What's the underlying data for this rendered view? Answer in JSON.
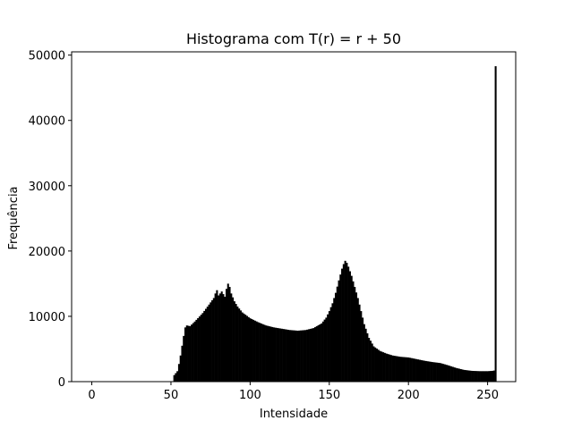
{
  "chart_data": {
    "type": "bar",
    "title": "Histograma com T(r) = r + 50",
    "xlabel": "Intensidade",
    "ylabel": "Frequência",
    "xlim": [
      -12.75,
      267.75
    ],
    "ylim": [
      0,
      50500
    ],
    "xticks": [
      0,
      50,
      100,
      150,
      200,
      250
    ],
    "yticks": [
      0,
      10000,
      20000,
      30000,
      40000,
      50000
    ],
    "grid": false,
    "legend": "none",
    "bar_color": "#000000",
    "bin_width": 1,
    "anchors": [
      [
        50,
        0
      ],
      [
        51,
        0
      ],
      [
        52,
        1000
      ],
      [
        53,
        1300
      ],
      [
        54,
        1600
      ],
      [
        55,
        2700
      ],
      [
        56,
        4000
      ],
      [
        57,
        5500
      ],
      [
        58,
        7000
      ],
      [
        59,
        8300
      ],
      [
        60,
        8600
      ],
      [
        62,
        8500
      ],
      [
        65,
        9200
      ],
      [
        70,
        10500
      ],
      [
        74,
        11800
      ],
      [
        77,
        12800
      ],
      [
        78,
        13500
      ],
      [
        79,
        14000
      ],
      [
        80,
        13200
      ],
      [
        82,
        13800
      ],
      [
        84,
        13000
      ],
      [
        85,
        14200
      ],
      [
        86,
        15000
      ],
      [
        87,
        14500
      ],
      [
        88,
        13500
      ],
      [
        90,
        12300
      ],
      [
        92,
        11500
      ],
      [
        95,
        10600
      ],
      [
        100,
        9700
      ],
      [
        105,
        9100
      ],
      [
        110,
        8600
      ],
      [
        115,
        8300
      ],
      [
        120,
        8100
      ],
      [
        125,
        7900
      ],
      [
        130,
        7800
      ],
      [
        135,
        7900
      ],
      [
        140,
        8200
      ],
      [
        145,
        8900
      ],
      [
        148,
        9800
      ],
      [
        150,
        10800
      ],
      [
        152,
        12000
      ],
      [
        154,
        13600
      ],
      [
        156,
        15500
      ],
      [
        158,
        17300
      ],
      [
        159,
        18000
      ],
      [
        160,
        18500
      ],
      [
        161,
        18200
      ],
      [
        162,
        17600
      ],
      [
        164,
        16200
      ],
      [
        166,
        14500
      ],
      [
        168,
        12800
      ],
      [
        170,
        10800
      ],
      [
        172,
        8800
      ],
      [
        175,
        6700
      ],
      [
        178,
        5400
      ],
      [
        182,
        4700
      ],
      [
        186,
        4300
      ],
      [
        190,
        4000
      ],
      [
        195,
        3800
      ],
      [
        200,
        3700
      ],
      [
        205,
        3450
      ],
      [
        210,
        3200
      ],
      [
        215,
        3000
      ],
      [
        220,
        2850
      ],
      [
        225,
        2500
      ],
      [
        230,
        2100
      ],
      [
        235,
        1800
      ],
      [
        240,
        1650
      ],
      [
        245,
        1600
      ],
      [
        250,
        1600
      ],
      [
        253,
        1650
      ],
      [
        254,
        1700
      ],
      [
        255,
        48300
      ]
    ]
  }
}
